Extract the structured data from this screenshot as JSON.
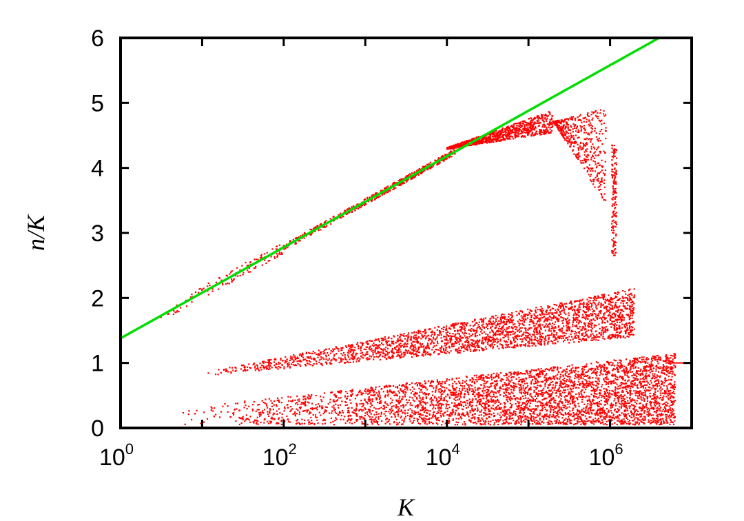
{
  "chart_data": {
    "type": "scatter",
    "title": "",
    "xlabel": "K",
    "ylabel": "n/K",
    "xscale": "log10",
    "xlim": [
      1,
      10000000
    ],
    "ylim": [
      0,
      6
    ],
    "x_ticks": [
      {
        "base": "10",
        "exp": "0",
        "value": 1
      },
      {
        "base": "10",
        "exp": "2",
        "value": 100
      },
      {
        "base": "10",
        "exp": "4",
        "value": 10000
      },
      {
        "base": "10",
        "exp": "6",
        "value": 1000000
      }
    ],
    "y_ticks": [
      "0",
      "1",
      "2",
      "3",
      "4",
      "5",
      "6"
    ],
    "grid": false,
    "legend": "none",
    "series": [
      {
        "color": "#00dd00",
        "style": "line",
        "points": [
          [
            1,
            1.38
          ],
          [
            10000000,
            6.28
          ]
        ]
      },
      {
        "color": "#ff0000",
        "style": "points",
        "description_bands": [
          {
            "band": "upper",
            "x_from": 1,
            "x_to": 10000,
            "y_follows_line": true
          },
          {
            "band": "upper-bend",
            "x_from": 10000,
            "x_to": 1200000,
            "y_from": 4.3,
            "y_to": 5.1,
            "then_drops_to": 2.65
          },
          {
            "band": "middle",
            "x_from": 8,
            "x_to": 3000000,
            "y_from": 0.8,
            "y_to": 2.2
          },
          {
            "band": "lower",
            "x_from": 4,
            "x_to": 5000000,
            "y_from": 0.05,
            "y_to": 1.0
          },
          {
            "band": "tail",
            "x_from": 5000000,
            "x_to": 10000000,
            "y": 1.0
          }
        ]
      }
    ]
  }
}
